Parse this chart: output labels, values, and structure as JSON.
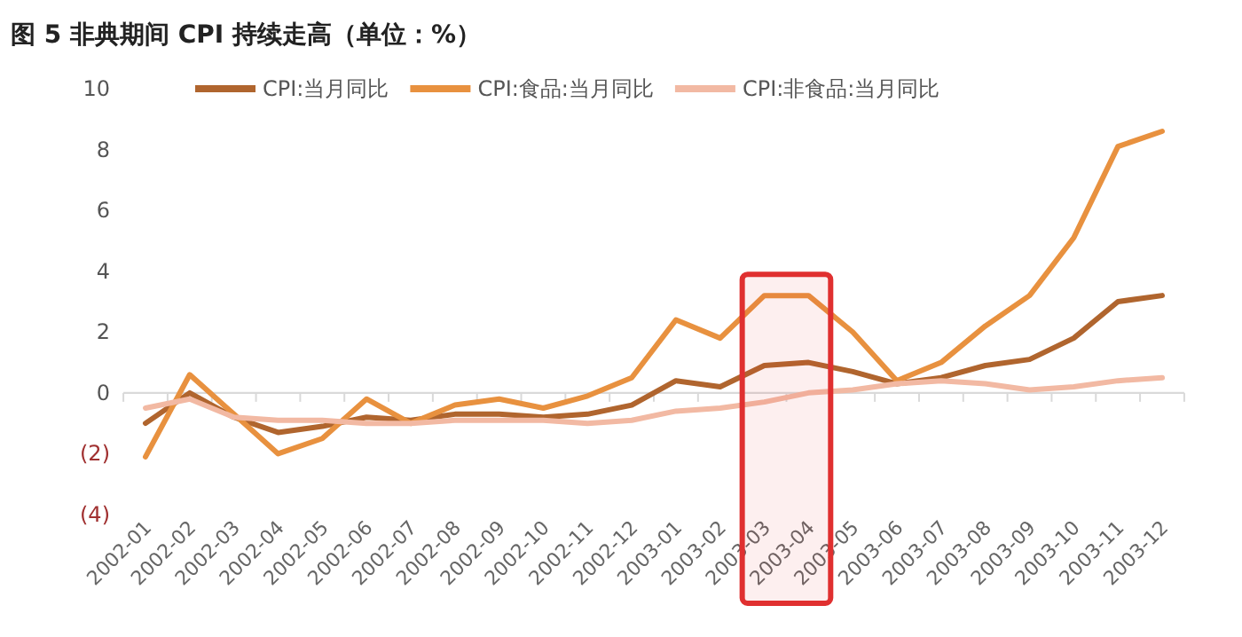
{
  "chart_data": {
    "type": "line",
    "title": "图 5 非典期间 CPI 持续走高（单位：%）",
    "categories": [
      "2002-01",
      "2002-02",
      "2002-03",
      "2002-04",
      "2002-05",
      "2002-06",
      "2002-07",
      "2002-08",
      "2002-09",
      "2002-10",
      "2002-11",
      "2002-12",
      "2003-01",
      "2003-02",
      "2003-03",
      "2003-04",
      "2003-05",
      "2003-06",
      "2003-07",
      "2003-08",
      "2003-09",
      "2003-10",
      "2003-11",
      "2003-12"
    ],
    "series": [
      {
        "name": "CPI:当月同比",
        "color": "#b0652e",
        "values": [
          -1.0,
          0.0,
          -0.8,
          -1.3,
          -1.1,
          -0.8,
          -0.9,
          -0.7,
          -0.7,
          -0.8,
          -0.7,
          -0.4,
          0.4,
          0.2,
          0.9,
          1.0,
          0.7,
          0.3,
          0.5,
          0.9,
          1.1,
          1.8,
          3.0,
          3.2
        ]
      },
      {
        "name": "CPI:食品:当月同比",
        "color": "#e8913f",
        "values": [
          -2.1,
          0.6,
          -0.7,
          -2.0,
          -1.5,
          -0.2,
          -1.0,
          -0.4,
          -0.2,
          -0.5,
          -0.1,
          0.5,
          2.4,
          1.8,
          3.2,
          3.2,
          2.0,
          0.4,
          1.0,
          2.2,
          3.2,
          5.1,
          8.1,
          8.6
        ]
      },
      {
        "name": "CPI:非食品:当月同比",
        "color": "#f2b9a3",
        "values": [
          -0.5,
          -0.2,
          -0.8,
          -0.9,
          -0.9,
          -1.0,
          -1.0,
          -0.9,
          -0.9,
          -0.9,
          -1.0,
          -0.9,
          -0.6,
          -0.5,
          -0.3,
          0.0,
          0.1,
          0.3,
          0.4,
          0.3,
          0.1,
          0.2,
          0.4,
          0.5
        ]
      }
    ],
    "ylim": [
      -4,
      10
    ],
    "yticks": [
      {
        "value": -4,
        "label": "(4)"
      },
      {
        "value": -2,
        "label": "(2)"
      },
      0,
      2,
      4,
      6,
      8,
      10
    ],
    "bands": [
      {
        "axis": "x",
        "from": "2003-03",
        "to": "2003-04",
        "color": "#e03030"
      }
    ],
    "legend": "top",
    "line_style": "solid",
    "marker": "none"
  }
}
